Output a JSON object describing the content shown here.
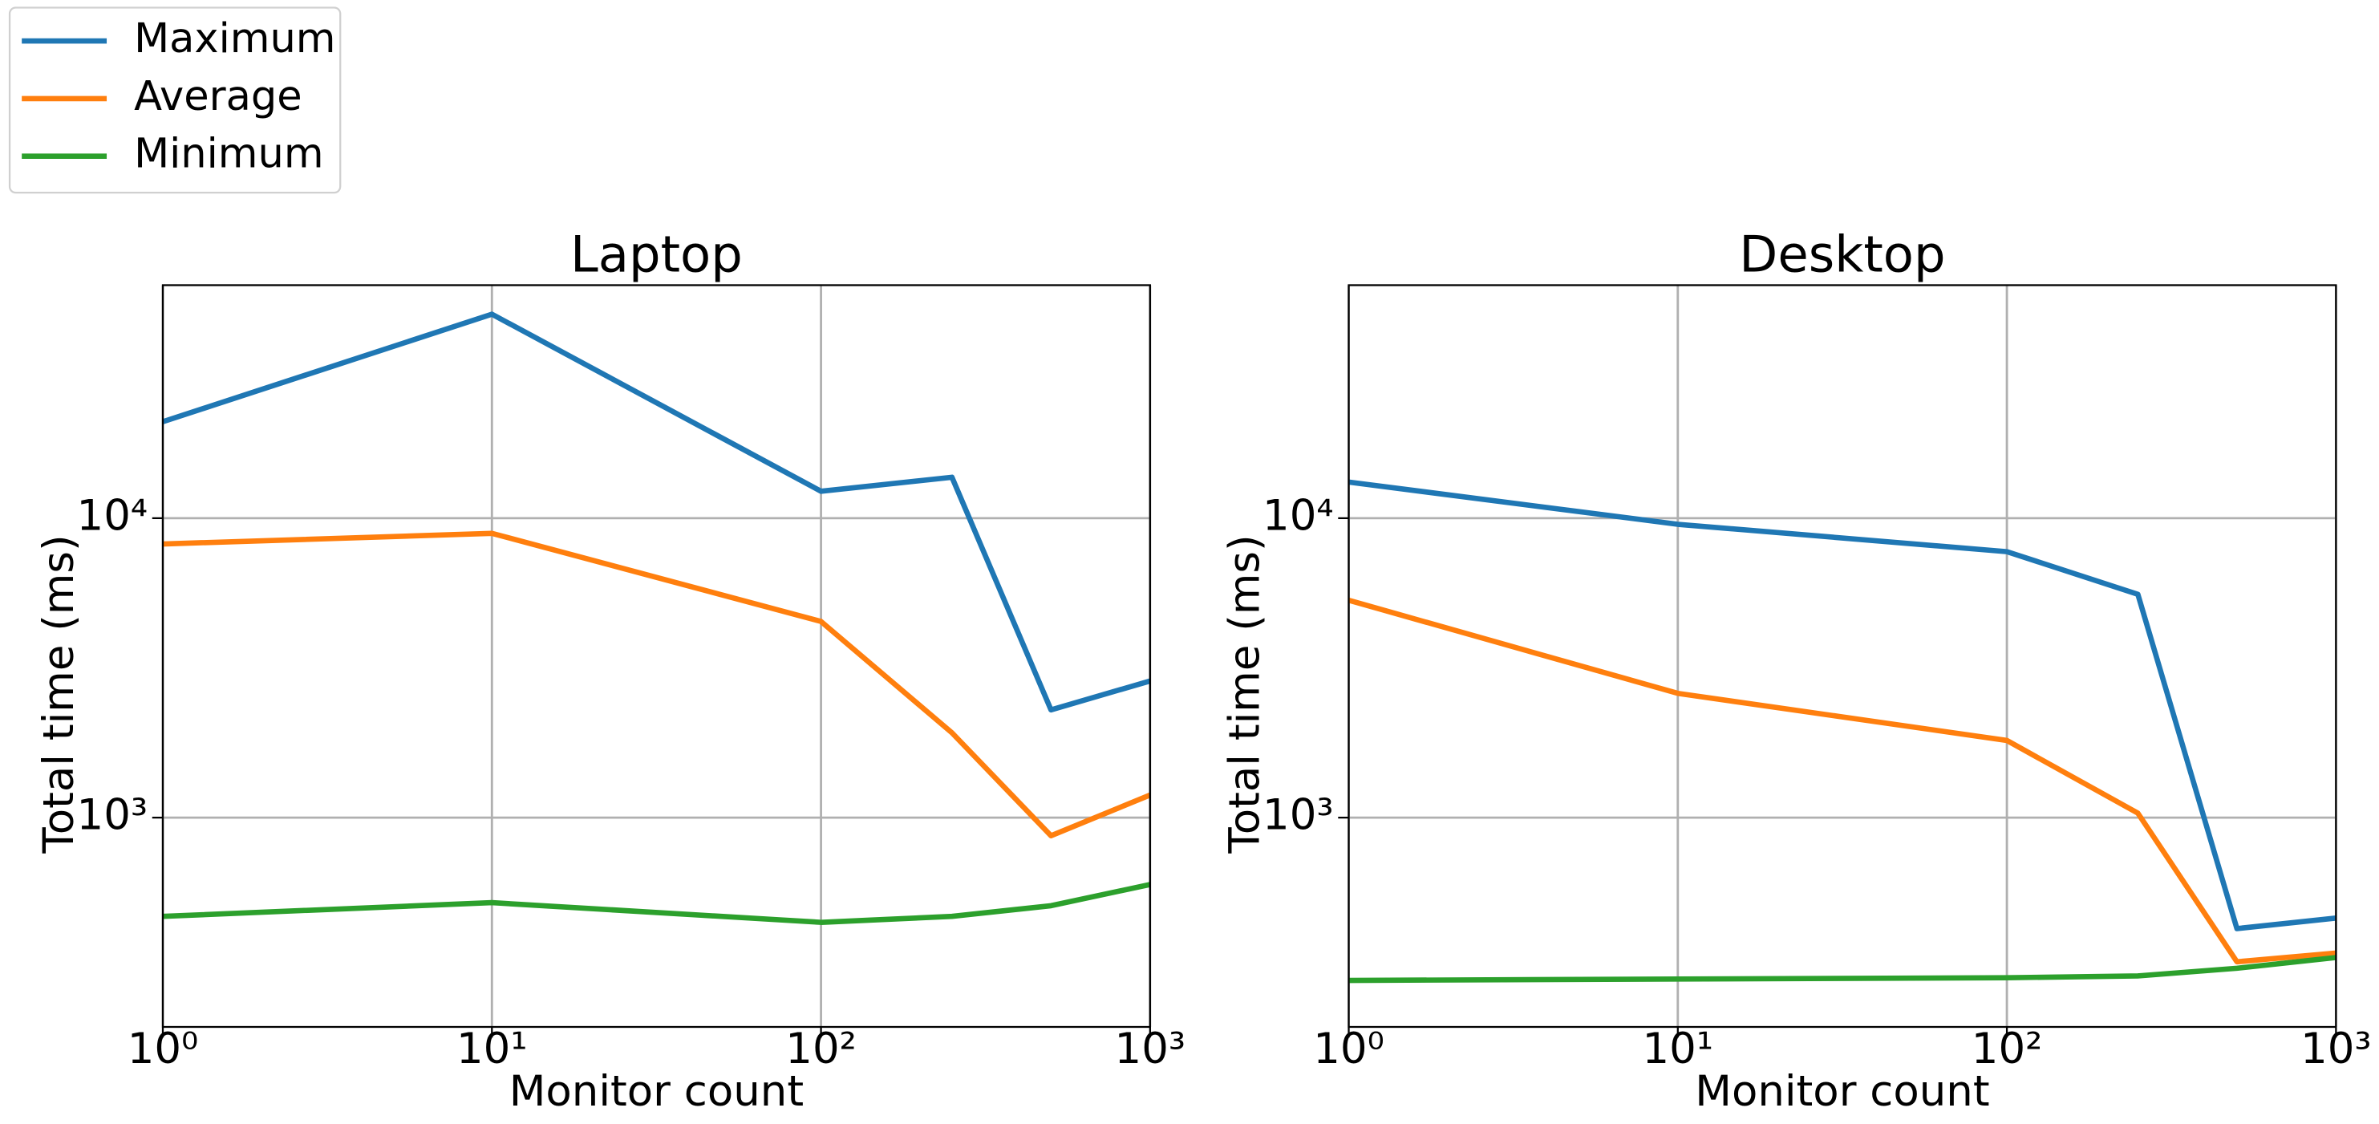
{
  "chart_data": [
    {
      "type": "line",
      "title": "Laptop",
      "xlabel": "Monitor count",
      "ylabel": "Total time (ms)",
      "x": [
        1,
        10,
        100,
        250,
        500,
        1000
      ],
      "series": [
        {
          "name": "Maximum",
          "color": "#1f77b4",
          "values": [
            21000,
            48000,
            12300,
            13700,
            2290,
            2860
          ]
        },
        {
          "name": "Average",
          "color": "#ff7f0e",
          "values": [
            8200,
            8900,
            4520,
            1920,
            870,
            1190
          ]
        },
        {
          "name": "Minimum",
          "color": "#2ca02c",
          "values": [
            468,
            520,
            447,
            468,
            508,
            598
          ]
        }
      ],
      "xlim": [
        1,
        1000
      ],
      "ylim": [
        200,
        60000
      ],
      "xticks": [
        {
          "value": 1,
          "label": "10⁰"
        },
        {
          "value": 10,
          "label": "10¹"
        },
        {
          "value": 100,
          "label": "10²"
        },
        {
          "value": 1000,
          "label": "10³"
        }
      ],
      "yticks": [
        {
          "value": 1000,
          "label": "10³"
        },
        {
          "value": 10000,
          "label": "10⁴"
        }
      ],
      "xscale": "log",
      "yscale": "log",
      "grid": true,
      "legend": "upper left"
    },
    {
      "type": "line",
      "title": "Desktop",
      "xlabel": "Monitor count",
      "ylabel": "Total time (ms)",
      "x": [
        1,
        10,
        100,
        250,
        500,
        1000
      ],
      "series": [
        {
          "name": "Maximum",
          "color": "#1f77b4",
          "values": [
            13200,
            9540,
            7730,
            5570,
            426,
            462
          ]
        },
        {
          "name": "Average",
          "color": "#ff7f0e",
          "values": [
            5320,
            2600,
            1810,
            1035,
            330,
            353
          ]
        },
        {
          "name": "Minimum",
          "color": "#2ca02c",
          "values": [
            286,
            289,
            292,
            296,
            314,
            341
          ]
        }
      ],
      "xlim": [
        1,
        1000
      ],
      "ylim": [
        200,
        60000
      ],
      "xticks": [
        {
          "value": 1,
          "label": "10⁰"
        },
        {
          "value": 10,
          "label": "10¹"
        },
        {
          "value": 100,
          "label": "10²"
        },
        {
          "value": 1000,
          "label": "10³"
        }
      ],
      "yticks": [
        {
          "value": 1000,
          "label": "10³"
        },
        {
          "value": 10000,
          "label": "10⁴"
        }
      ],
      "xscale": "log",
      "yscale": "log",
      "grid": true
    }
  ]
}
